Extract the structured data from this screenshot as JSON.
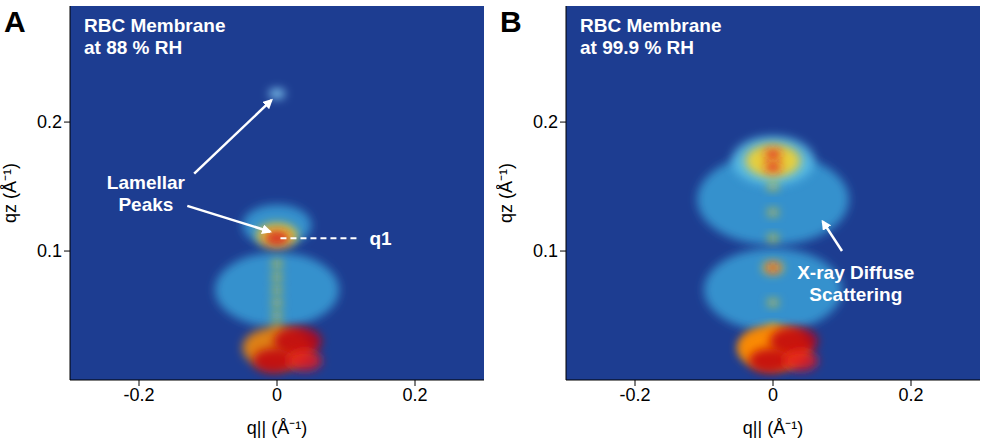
{
  "chart_data": [
    {
      "type": "scatter",
      "panel": "A",
      "title": "RBC Membrane at 88 % RH",
      "xlabel": "q|| (Å⁻¹)",
      "ylabel": "qz (Å⁻¹)",
      "xlim": [
        -0.3,
        0.3
      ],
      "ylim": [
        0,
        0.29
      ],
      "xticks": [
        -0.2,
        0,
        0.2
      ],
      "yticks": [
        0.1,
        0.2
      ],
      "grid": false,
      "x": [
        0,
        0,
        0,
        0,
        0,
        0,
        0,
        0,
        0,
        0,
        0,
        0,
        0.03,
        -0.005,
        0.04
      ],
      "values": [
        0.07,
        0.12,
        0.04,
        0.05,
        0.06,
        0.07,
        0.08,
        0.09,
        0.112,
        0.11,
        0.222,
        0.025,
        0.03,
        0.015,
        0.015
      ],
      "colors": [
        "#3aa0d8",
        "#3aa0d8",
        "#f2c81a",
        "#f2c81a",
        "#f2c81a",
        "#f2c81a",
        "#f2c81a",
        "#f2c81a",
        "#ffd21f",
        "#d7191c",
        "#8fdcff",
        "#ff8c00",
        "#c0000a",
        "#c0000a",
        "#e31a1c"
      ],
      "sizes": [
        0.09,
        0.05,
        0.008,
        0.008,
        0.008,
        0.008,
        0.008,
        0.008,
        0.03,
        0.018,
        0.012,
        0.05,
        0.035,
        0.03,
        0.025
      ],
      "annotations": [
        {
          "text": "Lamellar Peaks",
          "x": -0.19,
          "y": 0.145,
          "arrows": [
            [
              -0.12,
              0.16,
              -0.008,
              0.217
            ],
            [
              -0.13,
              0.135,
              -0.01,
              0.115
            ]
          ]
        },
        {
          "text": "q1",
          "x": 0.15,
          "y": 0.11,
          "line_style": "dashed",
          "line": [
            0.005,
            0.11,
            0.12,
            0.11
          ]
        }
      ]
    },
    {
      "type": "scatter",
      "panel": "B",
      "title": "RBC Membrane at 99.9 % RH",
      "xlabel": "q|| (Å⁻¹)",
      "ylabel": "qz (Å⁻¹)",
      "xlim": [
        -0.3,
        0.3
      ],
      "ylim": [
        0,
        0.29
      ],
      "xticks": [
        -0.2,
        0,
        0.2
      ],
      "yticks": [
        0.1,
        0.2
      ],
      "grid": false,
      "x": [
        0,
        0,
        0,
        0,
        0,
        0,
        0,
        0,
        0,
        0,
        0,
        0,
        0,
        0,
        0,
        0.03,
        -0.005,
        0.04
      ],
      "values": [
        0.14,
        0.07,
        0.17,
        0.04,
        0.06,
        0.11,
        0.13,
        0.15,
        0.17,
        0.175,
        0.165,
        0.087,
        0.087,
        0.025,
        0.025,
        0.03,
        0.015,
        0.015
      ],
      "colors": [
        "#3aa0d8",
        "#3aa0d8",
        "#5cc0e8",
        "#f2c81a",
        "#f2c81a",
        "#f2c81a",
        "#f2c81a",
        "#f2c81a",
        "#ffd21f",
        "#e31a1c",
        "#e31a1c",
        "#ffd21f",
        "#e31a1c",
        "#ff8c00",
        "#ff8c00",
        "#c0000a",
        "#c0000a",
        "#e31a1c"
      ],
      "sizes": [
        0.11,
        0.1,
        0.06,
        0.008,
        0.008,
        0.008,
        0.008,
        0.008,
        0.04,
        0.012,
        0.012,
        0.015,
        0.009,
        0.05,
        0.05,
        0.035,
        0.03,
        0.025
      ],
      "annotations": [
        {
          "text": "X-ray Diffuse Scattering",
          "x": 0.12,
          "y": 0.075,
          "arrows": [
            [
              0.1,
              0.1,
              0.072,
              0.123
            ]
          ]
        }
      ]
    }
  ]
}
